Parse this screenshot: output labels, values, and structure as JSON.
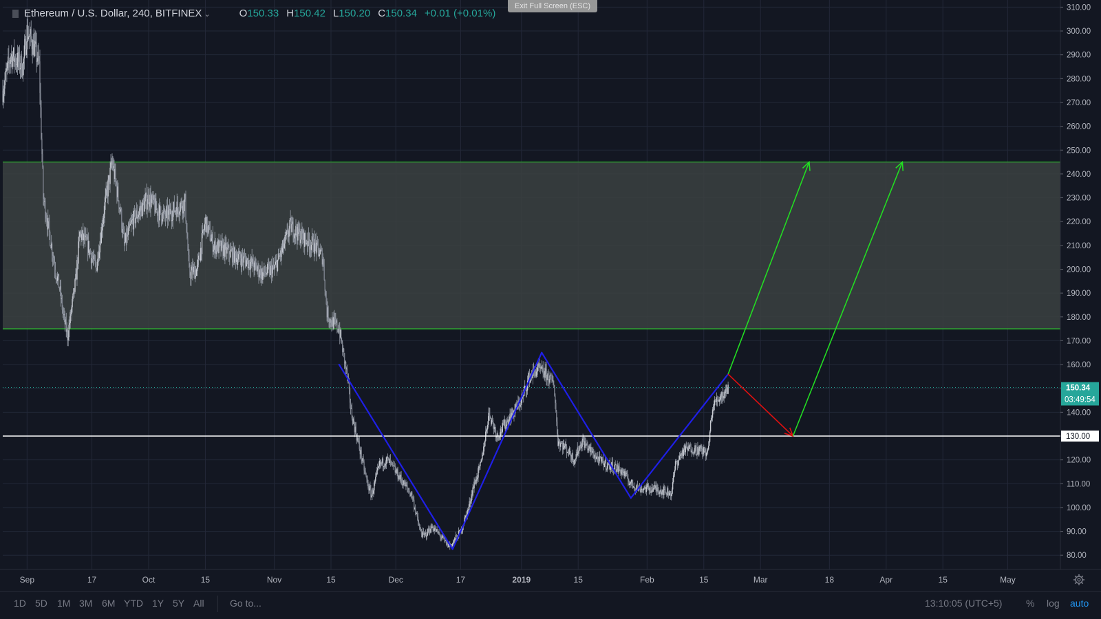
{
  "legend": {
    "title": "Ethereum / U.S. Dollar, 240, BITFINEX",
    "open_label": "O",
    "open": "150.33",
    "high_label": "H",
    "high": "150.42",
    "low_label": "L",
    "low": "150.20",
    "close_label": "C",
    "close": "150.34",
    "change": "+0.01 (+0.01%)"
  },
  "exit_fullscreen": "Exit Full Screen (ESC)",
  "price_label": {
    "price": "150.34",
    "countdown": "03:49:54"
  },
  "bottom_bar": {
    "ranges": [
      "1D",
      "5D",
      "1M",
      "3M",
      "6M",
      "YTD",
      "1Y",
      "5Y",
      "All"
    ],
    "goto": "Go to...",
    "time": "13:10:05 (UTC+5)",
    "percent": "%",
    "log": "log",
    "auto": "auto"
  },
  "colors": {
    "background": "#131722",
    "grid": "#232838",
    "candle": "#9aa0ab",
    "zone_fill": "#3b4141",
    "zone_border": "#2ecc2e",
    "support": "#ffffff",
    "pattern": "#1f1fe6",
    "projection_up": "#22dd22",
    "projection_down": "#e01010",
    "price_tag": "#26a69a"
  },
  "chart_data": {
    "type": "candlestick",
    "symbol": "Ethereum / U.S. Dollar",
    "interval": "240",
    "exchange": "BITFINEX",
    "y_ticks": [
      80,
      90,
      100,
      110,
      120,
      130,
      140,
      150,
      160,
      170,
      180,
      190,
      200,
      210,
      220,
      230,
      240,
      250,
      260,
      270,
      280,
      290,
      300,
      310
    ],
    "y_tick_labels": [
      "80.00",
      "90.00",
      "100.00",
      "110.00",
      "120.00",
      "130.00",
      "140.00",
      "150.00",
      "160.00",
      "170.00",
      "180.00",
      "190.00",
      "200.00",
      "210.00",
      "220.00",
      "230.00",
      "240.00",
      "250.00",
      "260.00",
      "270.00",
      "280.00",
      "290.00",
      "300.00",
      "310.00"
    ],
    "ylim": [
      74,
      313
    ],
    "x_labels": [
      {
        "date": "2018-09-01",
        "label": "Sep",
        "bold": false
      },
      {
        "date": "2018-09-17",
        "label": "17",
        "bold": false
      },
      {
        "date": "2018-10-01",
        "label": "Oct",
        "bold": false
      },
      {
        "date": "2018-10-15",
        "label": "15",
        "bold": false
      },
      {
        "date": "2018-11-01",
        "label": "Nov",
        "bold": false
      },
      {
        "date": "2018-11-15",
        "label": "15",
        "bold": false
      },
      {
        "date": "2018-12-01",
        "label": "Dec",
        "bold": false
      },
      {
        "date": "2018-12-17",
        "label": "17",
        "bold": false
      },
      {
        "date": "2019-01-01",
        "label": "2019",
        "bold": true
      },
      {
        "date": "2019-01-15",
        "label": "15",
        "bold": false
      },
      {
        "date": "2019-02-01",
        "label": "Feb",
        "bold": false
      },
      {
        "date": "2019-02-15",
        "label": "15",
        "bold": false
      },
      {
        "date": "2019-03-01",
        "label": "Mar",
        "bold": false
      },
      {
        "date": "2019-03-18",
        "label": "18",
        "bold": false
      },
      {
        "date": "2019-04-01",
        "label": "Apr",
        "bold": false
      },
      {
        "date": "2019-04-15",
        "label": "15",
        "bold": false
      },
      {
        "date": "2019-05-01",
        "label": "May",
        "bold": false
      }
    ],
    "xlim": [
      "2018-08-26",
      "2019-05-14"
    ],
    "price_path": [
      [
        "2018-08-26",
        275
      ],
      [
        "2018-08-28",
        290
      ],
      [
        "2018-08-31",
        285
      ],
      [
        "2018-09-01",
        300
      ],
      [
        "2018-09-03",
        292
      ],
      [
        "2018-09-04",
        285
      ],
      [
        "2018-09-05",
        230
      ],
      [
        "2018-09-06",
        220
      ],
      [
        "2018-09-08",
        200
      ],
      [
        "2018-09-09",
        192
      ],
      [
        "2018-09-10",
        180
      ],
      [
        "2018-09-11",
        172
      ],
      [
        "2018-09-13",
        195
      ],
      [
        "2018-09-14",
        215
      ],
      [
        "2018-09-16",
        210
      ],
      [
        "2018-09-18",
        200
      ],
      [
        "2018-09-20",
        225
      ],
      [
        "2018-09-22",
        245
      ],
      [
        "2018-09-24",
        225
      ],
      [
        "2018-09-25",
        210
      ],
      [
        "2018-09-27",
        220
      ],
      [
        "2018-09-29",
        225
      ],
      [
        "2018-10-01",
        230
      ],
      [
        "2018-10-03",
        225
      ],
      [
        "2018-10-05",
        222
      ],
      [
        "2018-10-08",
        226
      ],
      [
        "2018-10-10",
        228
      ],
      [
        "2018-10-11",
        198
      ],
      [
        "2018-10-13",
        200
      ],
      [
        "2018-10-15",
        220
      ],
      [
        "2018-10-17",
        210
      ],
      [
        "2018-10-20",
        208
      ],
      [
        "2018-10-23",
        205
      ],
      [
        "2018-10-26",
        203
      ],
      [
        "2018-10-29",
        198
      ],
      [
        "2018-11-01",
        200
      ],
      [
        "2018-11-03",
        208
      ],
      [
        "2018-11-05",
        218
      ],
      [
        "2018-11-07",
        215
      ],
      [
        "2018-11-09",
        212
      ],
      [
        "2018-11-11",
        210
      ],
      [
        "2018-11-13",
        205
      ],
      [
        "2018-11-14",
        182
      ],
      [
        "2018-11-15",
        178
      ],
      [
        "2018-11-16",
        177
      ],
      [
        "2018-11-17",
        175
      ],
      [
        "2018-11-19",
        155
      ],
      [
        "2018-11-20",
        140
      ],
      [
        "2018-11-22",
        125
      ],
      [
        "2018-11-24",
        110
      ],
      [
        "2018-11-25",
        105
      ],
      [
        "2018-11-27",
        118
      ],
      [
        "2018-11-29",
        120
      ],
      [
        "2018-12-01",
        115
      ],
      [
        "2018-12-03",
        110
      ],
      [
        "2018-12-05",
        105
      ],
      [
        "2018-12-07",
        90
      ],
      [
        "2018-12-08",
        88
      ],
      [
        "2018-12-10",
        92
      ],
      [
        "2018-12-12",
        88
      ],
      [
        "2018-12-14",
        84
      ],
      [
        "2018-12-15",
        85
      ],
      [
        "2018-12-17",
        90
      ],
      [
        "2018-12-19",
        100
      ],
      [
        "2018-12-20",
        108
      ],
      [
        "2018-12-22",
        118
      ],
      [
        "2018-12-24",
        140
      ],
      [
        "2018-12-26",
        130
      ],
      [
        "2018-12-28",
        135
      ],
      [
        "2018-12-30",
        140
      ],
      [
        "2019-01-01",
        145
      ],
      [
        "2019-01-03",
        155
      ],
      [
        "2019-01-05",
        158
      ],
      [
        "2019-01-07",
        156
      ],
      [
        "2019-01-09",
        152
      ],
      [
        "2019-01-10",
        128
      ],
      [
        "2019-01-12",
        125
      ],
      [
        "2019-01-14",
        120
      ],
      [
        "2019-01-16",
        128
      ],
      [
        "2019-01-18",
        124
      ],
      [
        "2019-01-20",
        120
      ],
      [
        "2019-01-22",
        118
      ],
      [
        "2019-01-24",
        117
      ],
      [
        "2019-01-26",
        115
      ],
      [
        "2019-01-28",
        110
      ],
      [
        "2019-01-30",
        108
      ],
      [
        "2019-02-01",
        108
      ],
      [
        "2019-02-03",
        108
      ],
      [
        "2019-02-05",
        107
      ],
      [
        "2019-02-07",
        106
      ],
      [
        "2019-02-08",
        118
      ],
      [
        "2019-02-10",
        124
      ],
      [
        "2019-02-12",
        125
      ],
      [
        "2019-02-14",
        124
      ],
      [
        "2019-02-16",
        123
      ],
      [
        "2019-02-17",
        140
      ],
      [
        "2019-02-18",
        145
      ],
      [
        "2019-02-20",
        148
      ],
      [
        "2019-02-21",
        150.34
      ]
    ],
    "annotations": {
      "resistance_zone": {
        "top": 245,
        "bottom": 175
      },
      "support_line": {
        "price": 130
      },
      "last_price_line": {
        "price": 150.34
      },
      "pattern_lines": [
        [
          [
            "2018-11-17",
            160
          ],
          [
            "2018-12-15",
            82.5
          ]
        ],
        [
          [
            "2018-12-15",
            82.5
          ],
          [
            "2019-01-06",
            165
          ]
        ],
        [
          [
            "2019-01-06",
            165
          ],
          [
            "2019-01-28",
            104
          ]
        ],
        [
          [
            "2019-01-28",
            104
          ],
          [
            "2019-02-21",
            156
          ]
        ]
      ],
      "projection_up_1": [
        [
          "2019-02-21",
          156
        ],
        [
          "2019-03-13",
          245
        ]
      ],
      "projection_down": [
        [
          "2019-02-21",
          156
        ],
        [
          "2019-03-09",
          130
        ]
      ],
      "projection_up_2": [
        [
          "2019-03-09",
          130
        ],
        [
          "2019-04-05",
          245
        ]
      ]
    }
  }
}
